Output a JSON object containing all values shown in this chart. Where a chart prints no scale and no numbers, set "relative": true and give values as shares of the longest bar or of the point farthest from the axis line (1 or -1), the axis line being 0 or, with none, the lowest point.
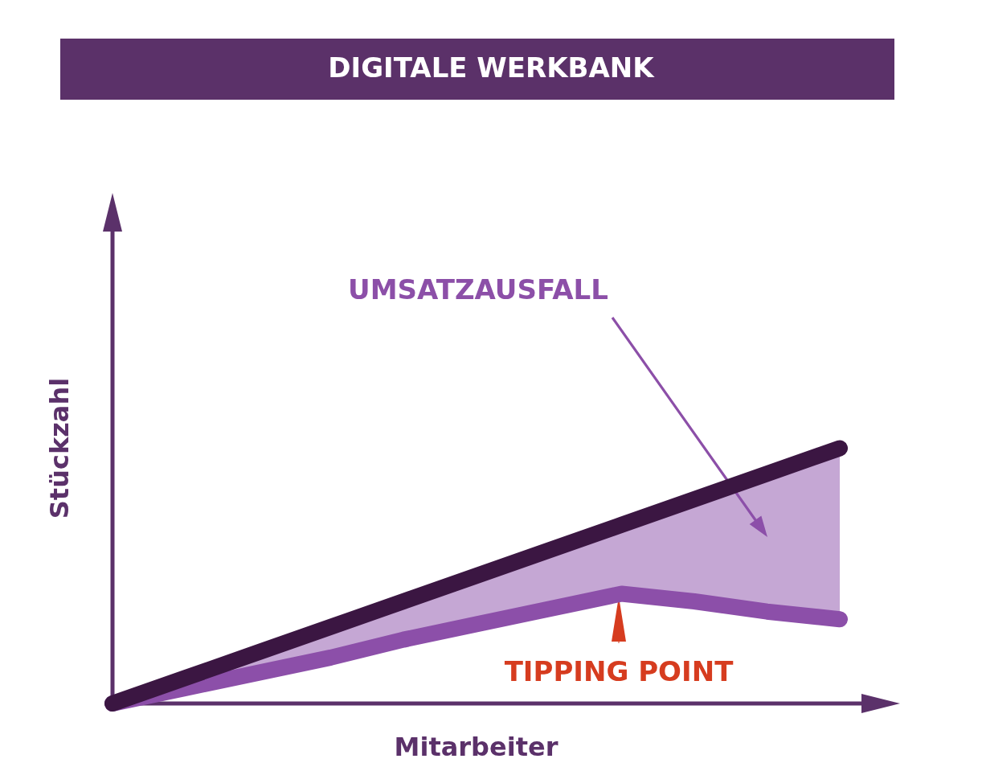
{
  "chart_data": {
    "type": "line",
    "title": "DIGITALE WERKBANK",
    "xlabel": "Mitarbeiter",
    "ylabel": "Stückzahl",
    "relative": true,
    "grid": false,
    "marker": "none",
    "line_style": "solid",
    "annotations": [
      "UMSATZAUSFALL",
      "TIPPING POINT"
    ],
    "categories": [
      null,
      null,
      null,
      null,
      null,
      null,
      null,
      null,
      null,
      null,
      null
    ],
    "series": [
      {
        "color": "#8c4fa9",
        "values": [
          0,
          0.06,
          0.12,
          0.18,
          0.25,
          0.31,
          0.37,
          0.43,
          0.4,
          0.36,
          0.33
        ],
        "lower": [
          0,
          0.06,
          0.12,
          0.18,
          0.25,
          0.31,
          0.37,
          0.43,
          0.4,
          0.36,
          0.33
        ],
        "upper": [
          0,
          0.1,
          0.2,
          0.3,
          0.4,
          0.5,
          0.6,
          0.7,
          0.8,
          0.9,
          1
        ]
      },
      {
        "color": "#3b1642",
        "values": [
          0,
          0.1,
          0.2,
          0.3,
          0.4,
          0.5,
          0.6,
          0.7,
          0.8,
          0.9,
          1
        ]
      }
    ]
  }
}
